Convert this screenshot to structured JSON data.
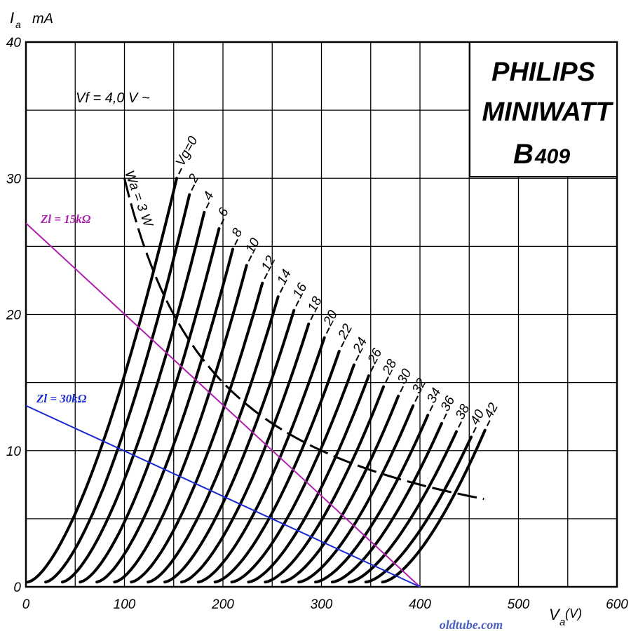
{
  "chart_data": {
    "type": "line",
    "title": [
      "PHILIPS",
      "MINIWATT",
      "B",
      "409"
    ],
    "filament_note": "Vf = 4,0 V ~",
    "ylabel": {
      "symbol": "I",
      "sub": "a",
      "unit": "mA"
    },
    "xlabel": {
      "symbol": "V",
      "sub": "a",
      "unit": "(V)"
    },
    "xlim": [
      0,
      600
    ],
    "ylim": [
      0,
      40
    ],
    "xticks": [
      "0",
      "100",
      "200",
      "300",
      "400",
      "500",
      "600"
    ],
    "yticks": [
      "0",
      "10",
      "20",
      "30",
      "40"
    ],
    "grid": true,
    "grid_x_step": 50,
    "grid_y_step": 5,
    "family_note": "plate curves Ia = f(Va); each curve begins at the listed start_va and ends at the listed end point",
    "curve_prefix": "Vg=",
    "series": [
      {
        "name": "0",
        "start_va": 2,
        "end": [
          153,
          30.0
        ]
      },
      {
        "name": "2",
        "start_va": 20,
        "end": [
          166,
          28.8
        ]
      },
      {
        "name": "4",
        "start_va": 37,
        "end": [
          181,
          27.5
        ]
      },
      {
        "name": "6",
        "start_va": 55,
        "end": [
          196,
          26.3
        ]
      },
      {
        "name": "8",
        "start_va": 72,
        "end": [
          210,
          24.8
        ]
      },
      {
        "name": "10",
        "start_va": 90,
        "end": [
          224,
          23.6
        ]
      },
      {
        "name": "12",
        "start_va": 107,
        "end": [
          240,
          22.3
        ]
      },
      {
        "name": "14",
        "start_va": 124,
        "end": [
          256,
          21.3
        ]
      },
      {
        "name": "16",
        "start_va": 141,
        "end": [
          272,
          20.3
        ]
      },
      {
        "name": "18",
        "start_va": 158,
        "end": [
          287,
          19.3
        ]
      },
      {
        "name": "20",
        "start_va": 175,
        "end": [
          303,
          18.3
        ]
      },
      {
        "name": "22",
        "start_va": 192,
        "end": [
          318,
          17.3
        ]
      },
      {
        "name": "24",
        "start_va": 209,
        "end": [
          333,
          16.3
        ]
      },
      {
        "name": "26",
        "start_va": 226,
        "end": [
          348,
          15.5
        ]
      },
      {
        "name": "28",
        "start_va": 243,
        "end": [
          363,
          14.7
        ]
      },
      {
        "name": "30",
        "start_va": 260,
        "end": [
          378,
          14.0
        ]
      },
      {
        "name": "32",
        "start_va": 277,
        "end": [
          393,
          13.3
        ]
      },
      {
        "name": "34",
        "start_va": 294,
        "end": [
          408,
          12.6
        ]
      },
      {
        "name": "36",
        "start_va": 311,
        "end": [
          422,
          12.0
        ]
      },
      {
        "name": "38",
        "start_va": 328,
        "end": [
          437,
          11.4
        ]
      },
      {
        "name": "40",
        "start_va": 345,
        "end": [
          452,
          11.0
        ]
      },
      {
        "name": "42",
        "start_va": 362,
        "end": [
          466,
          11.5
        ]
      }
    ],
    "dissipation_curve": {
      "label": "Wa = 3 W",
      "power_w": 3,
      "va_range": [
        100,
        465
      ]
    },
    "load_lines": [
      {
        "label": "Zl = 15kΩ",
        "color": "#b020b0",
        "points": [
          [
            0,
            26.7
          ],
          [
            400,
            0
          ]
        ]
      },
      {
        "label": "Zl = 30kΩ",
        "color": "#1a2ad0",
        "points": [
          [
            0,
            13.3
          ],
          [
            400,
            0
          ]
        ]
      }
    ]
  },
  "watermark": "oldtube.com"
}
